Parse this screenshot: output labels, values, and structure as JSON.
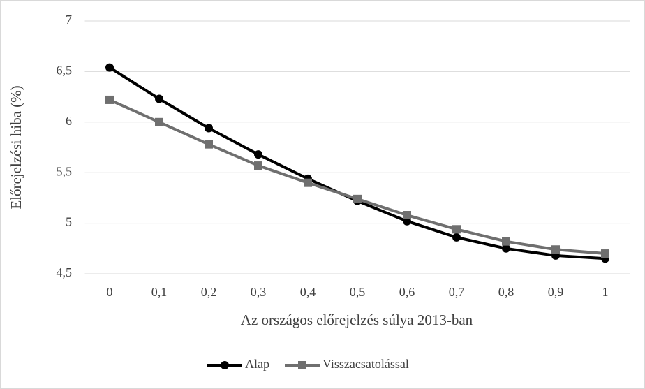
{
  "chart_data": {
    "type": "line",
    "x_label": "Az országos előrejelzés súlya 2013-ban",
    "y_label": "Előrejelzési hiba (%)",
    "categories": [
      "0",
      "0,1",
      "0,2",
      "0,3",
      "0,4",
      "0,5",
      "0,6",
      "0,7",
      "0,8",
      "0,9",
      "1"
    ],
    "series": [
      {
        "name": "Alap",
        "color": "#000000",
        "marker": "circle",
        "values": [
          6.54,
          6.23,
          5.94,
          5.68,
          5.44,
          5.22,
          5.02,
          4.86,
          4.75,
          4.68,
          4.65
        ]
      },
      {
        "name": "Visszacsatolással",
        "color": "#6f6f6f",
        "marker": "square",
        "values": [
          6.22,
          6.0,
          5.78,
          5.57,
          5.4,
          5.24,
          5.08,
          4.94,
          4.82,
          4.74,
          4.7
        ]
      }
    ],
    "ylim": [
      4.5,
      7
    ],
    "yticks": [
      {
        "value": 4.5,
        "label": "4,5"
      },
      5,
      {
        "value": 5.5,
        "label": "5,5"
      },
      6,
      {
        "value": 6.5,
        "label": "6,5"
      },
      7
    ],
    "grid": true,
    "legend": "bottom"
  }
}
